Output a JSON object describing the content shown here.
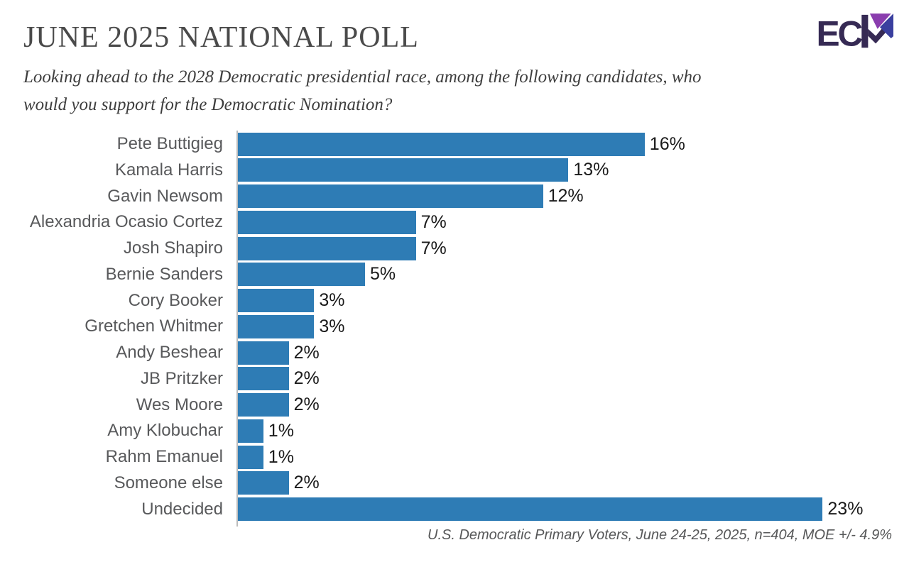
{
  "header": {
    "title": "JUNE 2025 NATIONAL POLL",
    "subtitle_lines": [
      "Looking ahead to the 2028 Democratic presidential race, among the following candidates, who",
      "would you support for the Democratic Nomination?"
    ]
  },
  "logo": {
    "text": "EC",
    "colors": {
      "dark_purple": "#362a54",
      "violet": "#8a3dae",
      "indigo": "#3a3f9f"
    }
  },
  "chart_data": {
    "type": "bar",
    "orientation": "horizontal",
    "title": "JUNE 2025 NATIONAL POLL",
    "xlabel": "",
    "ylabel": "",
    "grid": false,
    "legend": false,
    "bar_color": "#2e7cb5",
    "axis_color": "#bcbcbc",
    "value_label_position": "outside-end",
    "xlim": [
      0,
      24
    ],
    "categories": [
      "Pete Buttigieg",
      "Kamala Harris",
      "Gavin Newsom",
      "Alexandria Ocasio Cortez",
      "Josh Shapiro",
      "Bernie Sanders",
      "Cory Booker",
      "Gretchen Whitmer",
      "Andy Beshear",
      "JB Pritzker",
      "Wes Moore",
      "Amy Klobuchar",
      "Rahm Emanuel",
      "Someone else",
      "Undecided"
    ],
    "values": [
      16,
      13,
      12,
      7,
      7,
      5,
      3,
      3,
      2,
      2,
      2,
      1,
      1,
      2,
      23
    ],
    "value_labels": [
      "16%",
      "13%",
      "12%",
      "7%",
      "7%",
      "5%",
      "3%",
      "3%",
      "2%",
      "2%",
      "2%",
      "1%",
      "1%",
      "2%",
      "23%"
    ]
  },
  "footer": {
    "source": "U.S. Democratic Primary Voters, June 24-25, 2025, n=404, MOE +/- 4.9%"
  }
}
